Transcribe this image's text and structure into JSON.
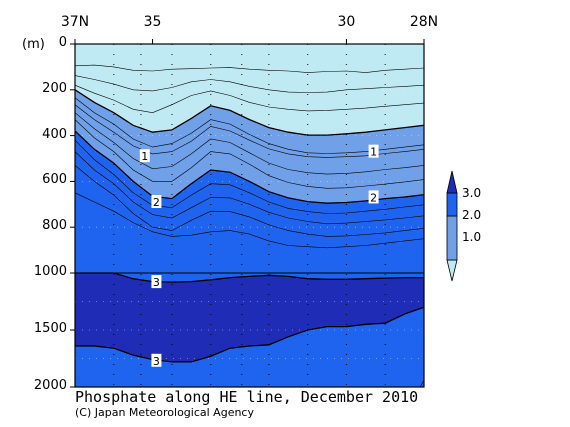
{
  "chart_data": {
    "type": "heatmap",
    "subtype": "vertical-section-contour",
    "title": "Phosphate along HE line, December 2010",
    "credit": "(C) Japan Meteorological Agency",
    "y_unit": "(m)",
    "x_tick_labels": [
      "37N",
      "35",
      "30",
      "28N"
    ],
    "x_ticks_lat": [
      37,
      35,
      30,
      28
    ],
    "xlim": [
      37,
      28
    ],
    "y_tick_labels": [
      "0",
      "200",
      "400",
      "600",
      "800",
      "1000",
      "1500",
      "2000"
    ],
    "y_ticks": [
      0,
      200,
      400,
      600,
      800,
      1000,
      1500,
      2000
    ],
    "y_scale_break": 1000,
    "ylim_upper": [
      0,
      1000
    ],
    "ylim_lower": [
      1000,
      2000
    ],
    "contour_interval": 0.2,
    "grid": true,
    "legend_position": "right",
    "color_levels": [
      {
        "range": "< 1.0",
        "color": "#bfeaf3"
      },
      {
        "range": "1.0 – 2.0",
        "color": "#6fa0e8"
      },
      {
        "range": "2.0 – 3.0",
        "color": "#1f64ee"
      },
      {
        "range": "> 3.0",
        "color": "#1f2cb6"
      }
    ],
    "colorbar_labels": [
      "3.0",
      "2.0",
      "1.0"
    ],
    "contour_line_labels": [
      {
        "text": "1",
        "lat": 35.2,
        "depth": 490
      },
      {
        "text": "1",
        "lat": 29.3,
        "depth": 470
      },
      {
        "text": "2",
        "lat": 34.9,
        "depth": 690
      },
      {
        "text": "2",
        "lat": 29.3,
        "depth": 670
      },
      {
        "text": "3",
        "lat": 34.9,
        "depth": 1080
      },
      {
        "text": "3",
        "lat": 34.9,
        "depth": 1770
      }
    ],
    "contours": [
      {
        "level": 0.6,
        "points": [
          [
            37,
            95
          ],
          [
            36.5,
            92
          ],
          [
            36,
            100
          ],
          [
            35.5,
            115
          ],
          [
            35,
            118
          ],
          [
            34.5,
            110
          ],
          [
            34,
            108
          ],
          [
            33.5,
            105
          ],
          [
            33,
            103
          ],
          [
            32.5,
            110
          ],
          [
            32,
            115
          ],
          [
            31.5,
            118
          ],
          [
            31,
            125
          ],
          [
            30.5,
            120
          ],
          [
            30,
            118
          ],
          [
            29.5,
            125
          ],
          [
            29,
            115
          ],
          [
            28.5,
            110
          ],
          [
            28,
            105
          ]
        ]
      },
      {
        "level": 0.8,
        "points": [
          [
            37,
            138
          ],
          [
            36.5,
            155
          ],
          [
            36,
            175
          ],
          [
            35.5,
            200
          ],
          [
            35,
            205
          ],
          [
            34.5,
            190
          ],
          [
            34,
            165
          ],
          [
            33.5,
            155
          ],
          [
            33,
            165
          ],
          [
            32.5,
            185
          ],
          [
            32,
            200
          ],
          [
            31.5,
            210
          ],
          [
            31,
            212
          ],
          [
            30.5,
            210
          ],
          [
            30,
            200
          ],
          [
            29.5,
            195
          ],
          [
            29,
            190
          ],
          [
            28.5,
            185
          ],
          [
            28,
            180
          ]
        ]
      },
      {
        "level": 0.9,
        "points": [
          [
            37,
            180
          ],
          [
            36.5,
            215
          ],
          [
            36,
            245
          ],
          [
            35.5,
            285
          ],
          [
            35,
            300
          ],
          [
            34.5,
            265
          ],
          [
            34,
            225
          ],
          [
            33.5,
            205
          ],
          [
            33,
            225
          ],
          [
            32.5,
            255
          ],
          [
            32,
            275
          ],
          [
            31.5,
            285
          ],
          [
            31,
            292
          ],
          [
            30.5,
            290
          ],
          [
            30,
            285
          ],
          [
            29.5,
            280
          ],
          [
            29,
            272
          ],
          [
            28.5,
            265
          ],
          [
            28,
            258
          ]
        ]
      },
      {
        "level": 1.0,
        "points": [
          [
            37,
            200
          ],
          [
            36.5,
            255
          ],
          [
            36,
            300
          ],
          [
            35.5,
            355
          ],
          [
            35,
            385
          ],
          [
            34.5,
            375
          ],
          [
            34,
            325
          ],
          [
            33.5,
            270
          ],
          [
            33,
            290
          ],
          [
            32.5,
            330
          ],
          [
            32,
            365
          ],
          [
            31.5,
            385
          ],
          [
            31,
            398
          ],
          [
            30.5,
            398
          ],
          [
            30,
            392
          ],
          [
            29.5,
            385
          ],
          [
            29,
            375
          ],
          [
            28.5,
            365
          ],
          [
            28,
            355
          ]
        ]
      },
      {
        "level": 1.2,
        "points": [
          [
            37,
            235
          ],
          [
            36.5,
            300
          ],
          [
            36,
            350
          ],
          [
            35.5,
            415
          ],
          [
            35,
            450
          ],
          [
            34.5,
            435
          ],
          [
            34,
            390
          ],
          [
            33.5,
            330
          ],
          [
            33,
            350
          ],
          [
            32.5,
            395
          ],
          [
            32,
            435
          ],
          [
            31.5,
            460
          ],
          [
            31,
            475
          ],
          [
            30.5,
            478
          ],
          [
            30,
            475
          ],
          [
            29.5,
            470
          ],
          [
            29,
            460
          ],
          [
            28.5,
            450
          ],
          [
            28,
            440
          ]
        ]
      },
      {
        "level": 1.4,
        "points": [
          [
            37,
            265
          ],
          [
            36.5,
            330
          ],
          [
            36,
            385
          ],
          [
            35.5,
            445
          ],
          [
            35,
            480
          ],
          [
            34.5,
            470
          ],
          [
            34,
            425
          ],
          [
            33.5,
            360
          ],
          [
            33,
            380
          ],
          [
            32.5,
            420
          ],
          [
            32,
            458
          ],
          [
            31.5,
            480
          ],
          [
            31,
            492
          ],
          [
            30.5,
            495
          ],
          [
            30,
            492
          ],
          [
            29.5,
            488
          ],
          [
            29,
            478
          ],
          [
            28.5,
            470
          ],
          [
            28,
            460
          ]
        ]
      },
      {
        "level": 1.6,
        "points": [
          [
            37,
            300
          ],
          [
            36.5,
            370
          ],
          [
            36,
            430
          ],
          [
            35.5,
            500
          ],
          [
            35,
            545
          ],
          [
            34.5,
            535
          ],
          [
            34,
            480
          ],
          [
            33.5,
            415
          ],
          [
            33,
            430
          ],
          [
            32.5,
            475
          ],
          [
            32,
            520
          ],
          [
            31.5,
            548
          ],
          [
            31,
            562
          ],
          [
            30.5,
            568
          ],
          [
            30,
            565
          ],
          [
            29.5,
            558
          ],
          [
            29,
            548
          ],
          [
            28.5,
            540
          ],
          [
            28,
            530
          ]
        ]
      },
      {
        "level": 1.8,
        "points": [
          [
            37,
            330
          ],
          [
            36.5,
            410
          ],
          [
            36,
            470
          ],
          [
            35.5,
            550
          ],
          [
            35,
            600
          ],
          [
            34.5,
            600
          ],
          [
            34,
            540
          ],
          [
            33.5,
            470
          ],
          [
            33,
            480
          ],
          [
            32.5,
            525
          ],
          [
            32,
            575
          ],
          [
            31.5,
            605
          ],
          [
            31,
            622
          ],
          [
            30.5,
            630
          ],
          [
            30,
            628
          ],
          [
            29.5,
            620
          ],
          [
            29,
            612
          ],
          [
            28.5,
            602
          ],
          [
            28,
            592
          ]
        ]
      },
      {
        "level": 2.0,
        "points": [
          [
            37,
            380
          ],
          [
            36.5,
            460
          ],
          [
            36,
            520
          ],
          [
            35.5,
            600
          ],
          [
            35,
            665
          ],
          [
            34.5,
            675
          ],
          [
            34,
            610
          ],
          [
            33.5,
            550
          ],
          [
            33,
            560
          ],
          [
            32.5,
            600
          ],
          [
            32,
            645
          ],
          [
            31.5,
            672
          ],
          [
            31,
            688
          ],
          [
            30.5,
            695
          ],
          [
            30,
            692
          ],
          [
            29.5,
            685
          ],
          [
            29,
            675
          ],
          [
            28.5,
            668
          ],
          [
            28,
            658
          ]
        ]
      },
      {
        "level": 2.2,
        "points": [
          [
            37,
            420
          ],
          [
            36.5,
            505
          ],
          [
            36,
            570
          ],
          [
            35.5,
            650
          ],
          [
            35,
            705
          ],
          [
            34.5,
            715
          ],
          [
            34,
            660
          ],
          [
            33.5,
            610
          ],
          [
            33,
            615
          ],
          [
            32.5,
            650
          ],
          [
            32,
            690
          ],
          [
            31.5,
            718
          ],
          [
            31,
            732
          ],
          [
            30.5,
            740
          ],
          [
            30,
            738
          ],
          [
            29.5,
            730
          ],
          [
            29,
            722
          ],
          [
            28.5,
            712
          ],
          [
            28,
            702
          ]
        ]
      },
      {
        "level": 2.4,
        "points": [
          [
            37,
            470
          ],
          [
            36.5,
            550
          ],
          [
            36,
            610
          ],
          [
            35.5,
            690
          ],
          [
            35,
            745
          ],
          [
            34.5,
            760
          ],
          [
            34,
            715
          ],
          [
            33.5,
            670
          ],
          [
            33,
            672
          ],
          [
            32.5,
            700
          ],
          [
            32,
            735
          ],
          [
            31.5,
            760
          ],
          [
            31,
            775
          ],
          [
            30.5,
            785
          ],
          [
            30,
            782
          ],
          [
            29.5,
            775
          ],
          [
            29,
            768
          ],
          [
            28.5,
            760
          ],
          [
            28,
            750
          ]
        ]
      },
      {
        "level": 2.6,
        "points": [
          [
            37,
            530
          ],
          [
            36.5,
            600
          ],
          [
            36,
            660
          ],
          [
            35.5,
            740
          ],
          [
            35,
            800
          ],
          [
            34.5,
            815
          ],
          [
            34,
            770
          ],
          [
            33.5,
            730
          ],
          [
            33,
            732
          ],
          [
            32.5,
            755
          ],
          [
            32,
            790
          ],
          [
            31.5,
            815
          ],
          [
            31,
            830
          ],
          [
            30.5,
            840
          ],
          [
            30,
            838
          ],
          [
            29.5,
            832
          ],
          [
            29,
            825
          ],
          [
            28.5,
            815
          ],
          [
            28,
            805
          ]
        ]
      },
      {
        "level": 2.8,
        "points": [
          [
            37,
            650
          ],
          [
            36.5,
            690
          ],
          [
            36,
            730
          ],
          [
            35.5,
            780
          ],
          [
            35,
            820
          ],
          [
            34.5,
            840
          ],
          [
            34,
            835
          ],
          [
            33.5,
            820
          ],
          [
            33,
            815
          ],
          [
            32.5,
            830
          ],
          [
            32,
            860
          ],
          [
            31.5,
            880
          ],
          [
            31,
            885
          ],
          [
            30.5,
            890
          ],
          [
            30,
            885
          ],
          [
            29.5,
            880
          ],
          [
            29,
            870
          ],
          [
            28.5,
            860
          ],
          [
            28,
            850
          ]
        ]
      },
      {
        "level": 3.0,
        "points": [
          [
            37,
            1000
          ],
          [
            36,
            1000
          ],
          [
            35.5,
            1050
          ],
          [
            35,
            1075
          ],
          [
            34.5,
            1080
          ],
          [
            34,
            1075
          ],
          [
            33.5,
            1060
          ],
          [
            33,
            1040
          ],
          [
            32.5,
            1030
          ],
          [
            32,
            1020
          ],
          [
            31.5,
            1030
          ],
          [
            31,
            1050
          ],
          [
            30.5,
            1055
          ],
          [
            30,
            1055
          ],
          [
            29.5,
            1050
          ],
          [
            29,
            1045
          ],
          [
            28.5,
            1040
          ],
          [
            28,
            1040
          ]
        ]
      },
      {
        "level": 3.0,
        "points": [
          [
            37,
            1640
          ],
          [
            36.5,
            1640
          ],
          [
            36,
            1660
          ],
          [
            35.5,
            1720
          ],
          [
            35,
            1760
          ],
          [
            34.5,
            1780
          ],
          [
            34,
            1780
          ],
          [
            33.5,
            1730
          ],
          [
            33,
            1660
          ],
          [
            32.5,
            1640
          ],
          [
            32,
            1630
          ],
          [
            31.5,
            1560
          ],
          [
            31,
            1500
          ],
          [
            30.5,
            1470
          ],
          [
            30,
            1470
          ],
          [
            29.5,
            1450
          ],
          [
            29,
            1440
          ],
          [
            28.5,
            1360
          ],
          [
            28,
            1300
          ]
        ]
      },
      {
        "level": 3.2,
        "points": [
          [
            28.1,
            2000
          ],
          [
            28,
            1940
          ]
        ]
      }
    ]
  }
}
